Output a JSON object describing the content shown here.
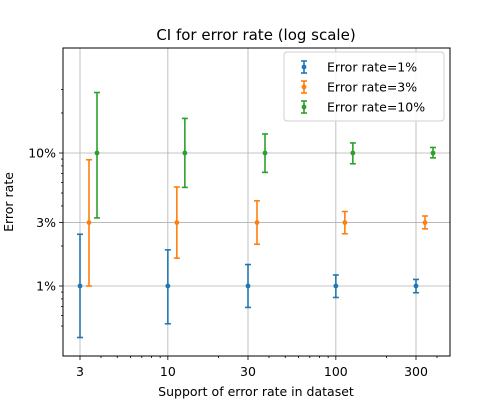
{
  "chart_data": {
    "type": "scatter",
    "title": "CI for error rate (log scale)",
    "xlabel": "Support of error rate in dataset",
    "ylabel": "Error rate",
    "x_scale": "log",
    "y_scale": "log",
    "grid": true,
    "legend_position": "top-right",
    "x_ticks": [
      {
        "value": 3,
        "label": "3"
      },
      {
        "value": 10,
        "label": "10"
      },
      {
        "value": 30,
        "label": "30"
      },
      {
        "value": 100,
        "label": "100"
      },
      {
        "value": 300,
        "label": "300"
      }
    ],
    "y_ticks": [
      {
        "value": 0.01,
        "label": "1%"
      },
      {
        "value": 0.03,
        "label": "3%"
      },
      {
        "value": 0.1,
        "label": "10%"
      }
    ],
    "series": [
      {
        "name": "Error rate=1%",
        "color": "#1f77b4",
        "points": [
          {
            "x": 3,
            "y": 0.01,
            "low": 0.0041,
            "high": 0.0245
          },
          {
            "x": 10,
            "y": 0.01,
            "low": 0.0052,
            "high": 0.0187
          },
          {
            "x": 30,
            "y": 0.01,
            "low": 0.0069,
            "high": 0.0145
          },
          {
            "x": 100,
            "y": 0.01,
            "low": 0.0082,
            "high": 0.0121
          },
          {
            "x": 300,
            "y": 0.01,
            "low": 0.0089,
            "high": 0.0112
          }
        ]
      },
      {
        "name": "Error rate=3%",
        "color": "#ff7f0e",
        "points": [
          {
            "x": 3,
            "y": 0.03,
            "low": 0.01,
            "high": 0.089
          },
          {
            "x": 10,
            "y": 0.03,
            "low": 0.0162,
            "high": 0.0555
          },
          {
            "x": 30,
            "y": 0.03,
            "low": 0.0206,
            "high": 0.0437
          },
          {
            "x": 100,
            "y": 0.03,
            "low": 0.0247,
            "high": 0.0363
          },
          {
            "x": 300,
            "y": 0.03,
            "low": 0.0269,
            "high": 0.0336
          }
        ]
      },
      {
        "name": "Error rate=10%",
        "color": "#2ca02c",
        "points": [
          {
            "x": 3,
            "y": 0.1,
            "low": 0.0325,
            "high": 0.285
          },
          {
            "x": 10,
            "y": 0.1,
            "low": 0.0551,
            "high": 0.182
          },
          {
            "x": 30,
            "y": 0.1,
            "low": 0.0715,
            "high": 0.139
          },
          {
            "x": 100,
            "y": 0.1,
            "low": 0.083,
            "high": 0.119
          },
          {
            "x": 300,
            "y": 0.1,
            "low": 0.0919,
            "high": 0.11
          }
        ]
      }
    ]
  }
}
